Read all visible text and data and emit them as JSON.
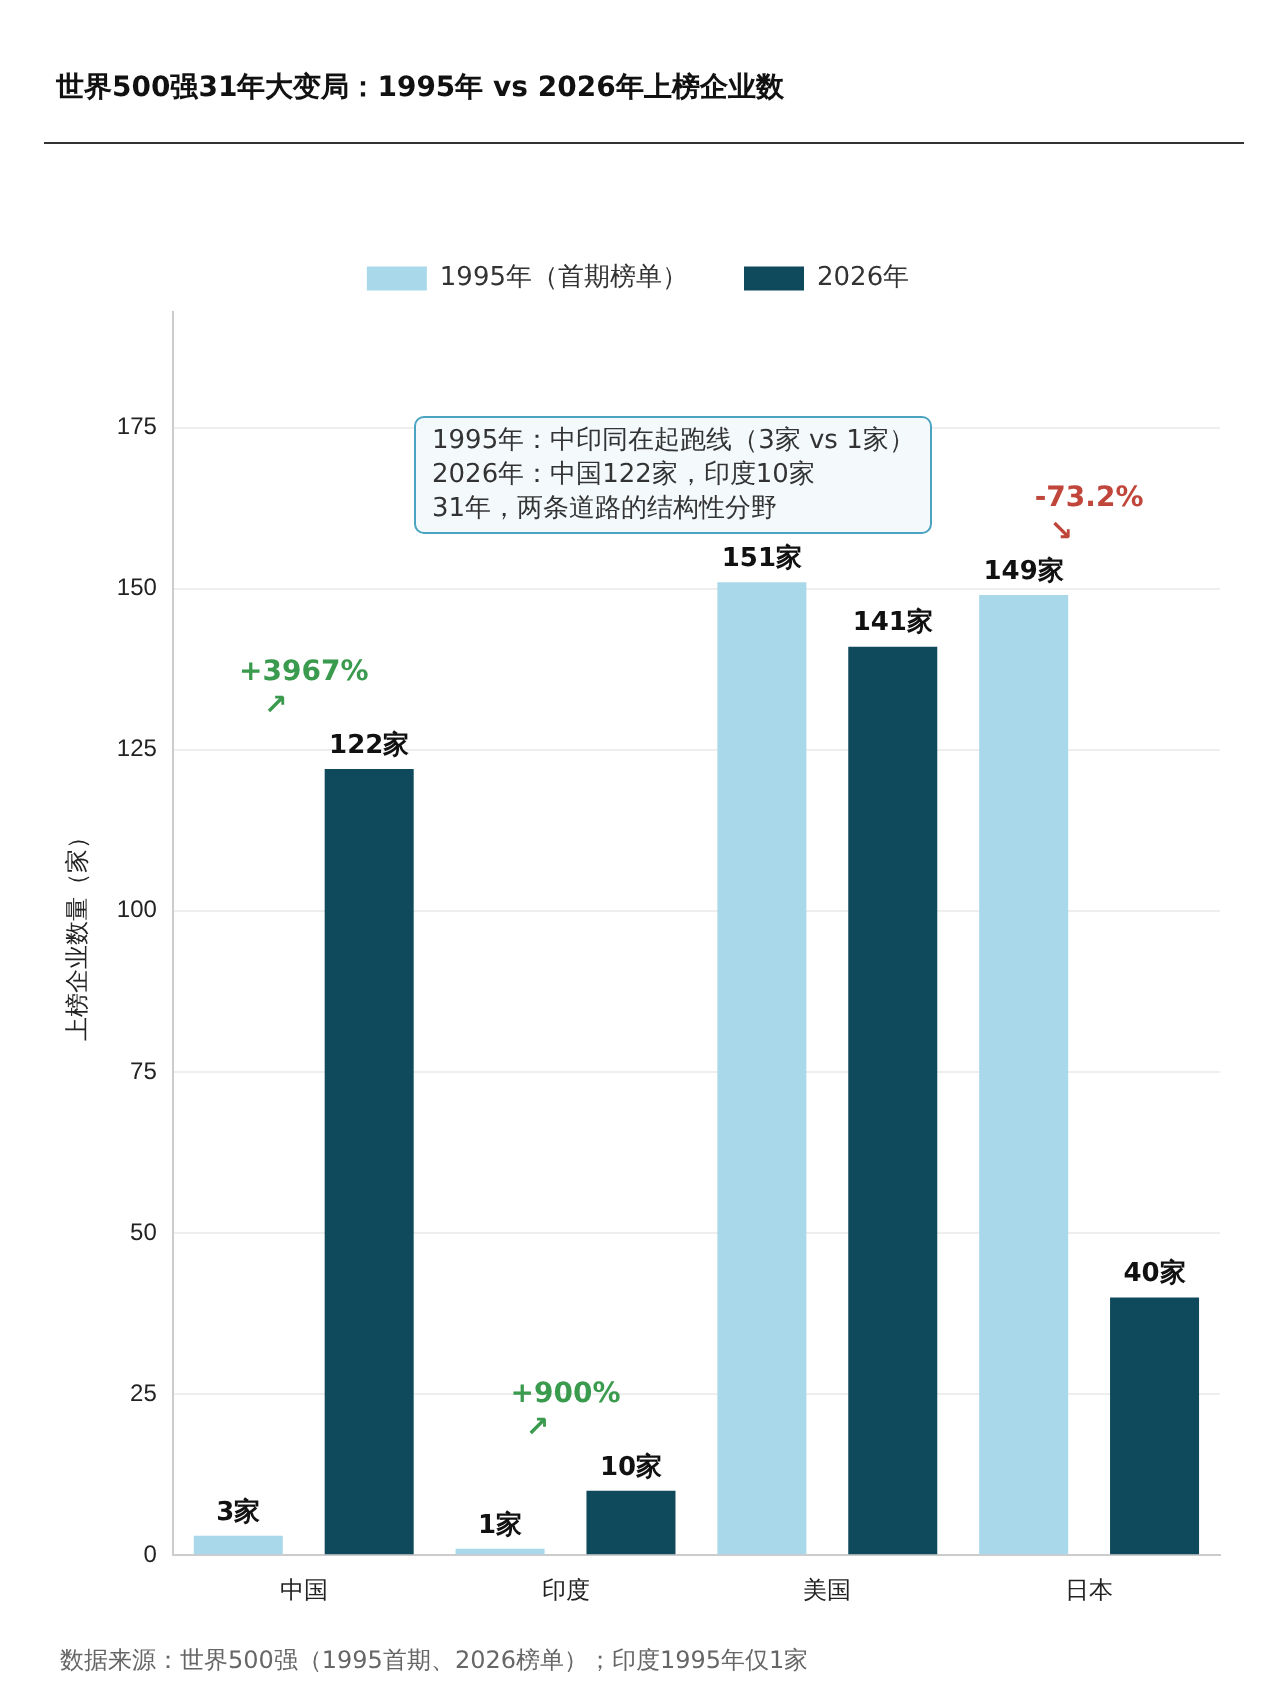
{
  "chart_data": {
    "type": "bar",
    "title": "世界500强31年大变局：1995年 vs 2026年上榜企业数",
    "ylabel": "上榜企业数量（家）",
    "categories": [
      "中国",
      "印度",
      "美国",
      "日本"
    ],
    "series": [
      {
        "name": "1995年（首期榜单）",
        "color": "#a8d8ea",
        "values": [
          3,
          1,
          151,
          149
        ],
        "value_labels": [
          "3家",
          "1家",
          "151家",
          "149家"
        ]
      },
      {
        "name": "2026年",
        "color": "#0e4a5c",
        "values": [
          122,
          10,
          141,
          40
        ],
        "value_labels": [
          "122家",
          "10家",
          "141家",
          "40家"
        ]
      }
    ],
    "ylim": [
      0,
      193
    ],
    "yticks": [
      0,
      25,
      50,
      75,
      100,
      125,
      150,
      175
    ],
    "grid": "y",
    "legend": "top",
    "annotations": [
      "+3967%\n↗",
      "+900%\n↗",
      "-73.2%\n↘",
      "1995年：中印同在起跑线（3家 vs 1家）\n2026年：中国122家，印度10家\n31年，两条道路的结构性分野",
      "数据来源：世界500强（1995首期、2026榜单）；印度1995年仅1家"
    ]
  }
}
